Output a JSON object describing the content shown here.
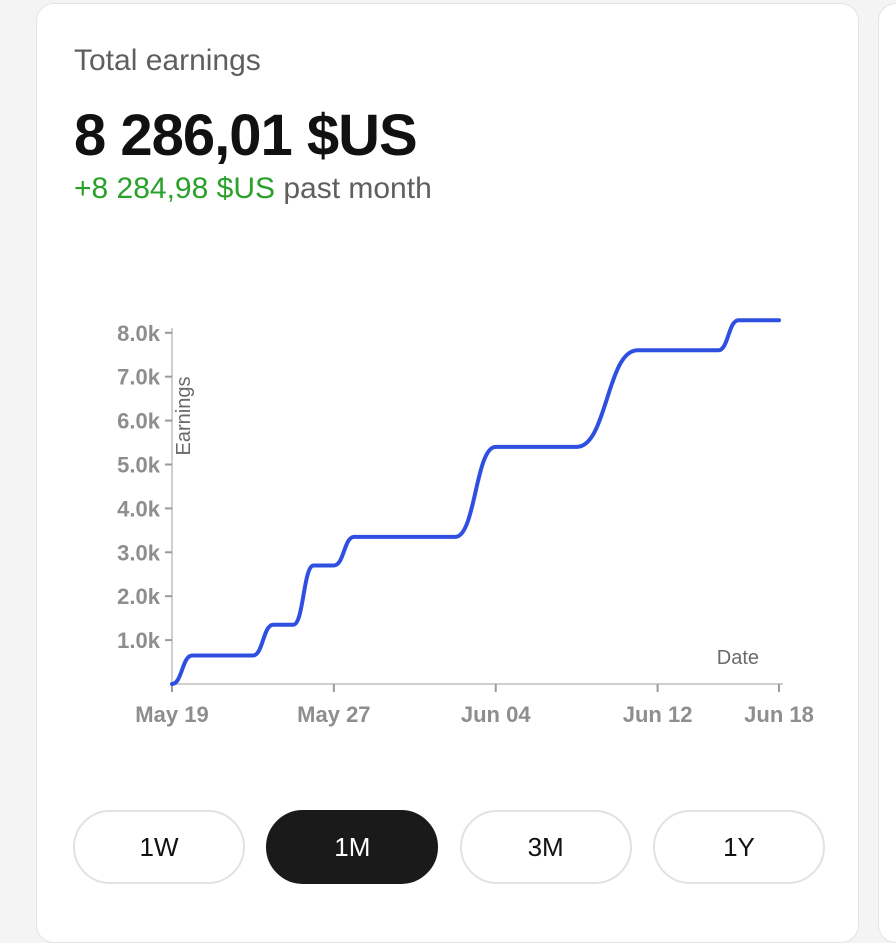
{
  "header": {
    "label": "Total earnings",
    "total": "8 286,01 $US",
    "change_value": "+8 284,98 $US",
    "change_period": "past month"
  },
  "colors": {
    "line": "#2f4fe0",
    "positive": "#2aa12a",
    "active_button": "#1a1a1a"
  },
  "chart_data": {
    "type": "line",
    "ylabel": "Earnings",
    "xlabel": "Date",
    "ylim": [
      0,
      8200
    ],
    "xlim": [
      "2024-05-19",
      "2024-06-18"
    ],
    "y_ticks": [
      1000,
      2000,
      3000,
      4000,
      5000,
      6000,
      7000,
      8000
    ],
    "y_tick_labels": [
      "1.0k",
      "2.0k",
      "3.0k",
      "4.0k",
      "5.0k",
      "6.0k",
      "7.0k",
      "8.0k"
    ],
    "x_ticks": [
      "2024-05-19",
      "2024-05-27",
      "2024-06-04",
      "2024-06-12",
      "2024-06-18"
    ],
    "x_tick_labels": [
      "May 19",
      "May 27",
      "Jun 04",
      "Jun 12",
      "Jun 18"
    ],
    "series": [
      {
        "x": [
          "2024-05-19",
          "2024-05-20",
          "2024-05-23",
          "2024-05-24",
          "2024-05-25",
          "2024-05-26",
          "2024-05-27",
          "2024-05-28",
          "2024-06-02",
          "2024-06-04",
          "2024-06-08",
          "2024-06-11",
          "2024-06-12",
          "2024-06-15",
          "2024-06-16",
          "2024-06-18"
        ],
        "y": [
          0,
          650,
          650,
          1350,
          1350,
          2700,
          2700,
          3350,
          3350,
          5400,
          5400,
          7600,
          7600,
          7600,
          8286,
          8286
        ]
      }
    ]
  },
  "ranges": [
    {
      "label": "1W",
      "active": false
    },
    {
      "label": "1M",
      "active": true
    },
    {
      "label": "3M",
      "active": false
    },
    {
      "label": "1Y",
      "active": false
    }
  ]
}
